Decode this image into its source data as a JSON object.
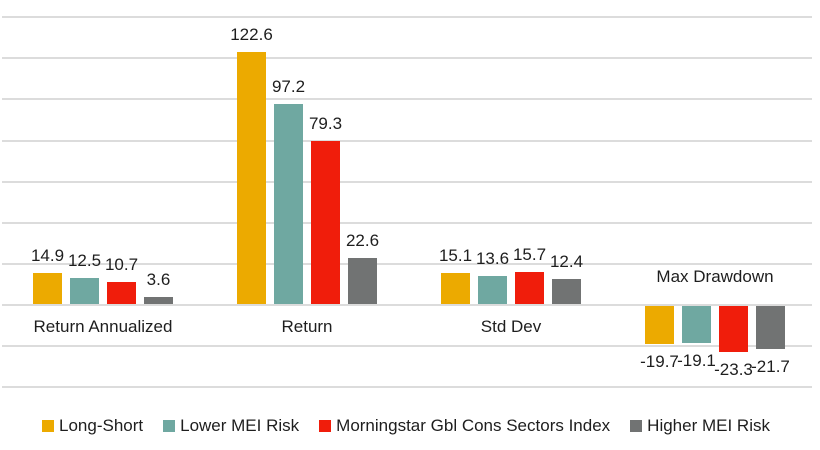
{
  "chart_data": {
    "type": "bar",
    "title": "",
    "categories": [
      "Return Annualized",
      "Return",
      "Std Dev",
      "Max Drawdown"
    ],
    "series": [
      {
        "name": "Long-Short",
        "color": "#ECAA00",
        "values": [
          14.9,
          122.6,
          15.1,
          -19.7
        ]
      },
      {
        "name": "Lower MEI Risk",
        "color": "#6FA8A1",
        "values": [
          12.5,
          97.2,
          13.6,
          -19.1
        ]
      },
      {
        "name": "Morningstar Gbl Cons Sectors Index",
        "color": "#F01D0B",
        "values": [
          10.7,
          79.3,
          15.7,
          -23.3
        ]
      },
      {
        "name": "Higher MEI Risk",
        "color": "#717373",
        "values": [
          3.6,
          22.6,
          12.4,
          -21.7
        ]
      }
    ],
    "value_labels_visible": true,
    "axis": {
      "ylim": [
        -40,
        140
      ],
      "grid_step": 20,
      "gridlines": true,
      "y_tick_labels_visible": false
    },
    "legend": {
      "position": "bottom-left"
    },
    "colors": {
      "background": "#FFFFFF",
      "gridline": "#DCDCDC",
      "text": "#1E1E1E"
    }
  }
}
